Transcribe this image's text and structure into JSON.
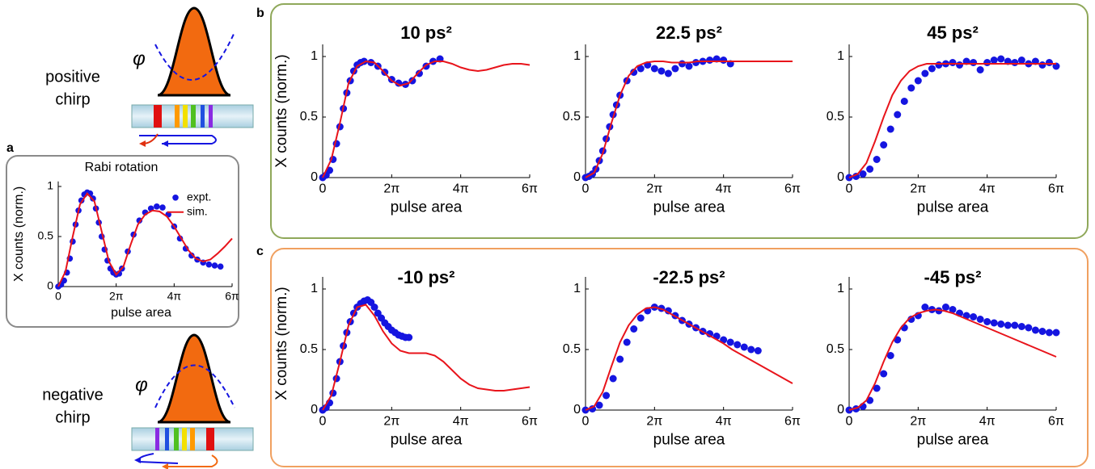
{
  "panel_labels": [
    "a",
    "b",
    "c"
  ],
  "illustrations": [
    {
      "label_lines": [
        "positive",
        "chirp"
      ],
      "phi": "φ"
    },
    {
      "label_lines": [
        "negative",
        "chirp"
      ],
      "phi": "φ"
    }
  ],
  "chart_data": [
    {
      "type": "scatter_line",
      "title": "Rabi rotation",
      "xlabel": "pulse area",
      "ylabel": "X counts (norm.)",
      "xlim": [
        0,
        6
      ],
      "ylim": [
        0,
        1.05
      ],
      "xticks": [
        0,
        {
          "value": 2,
          "label": "2π"
        },
        {
          "value": 4,
          "label": "4π"
        },
        {
          "value": 6,
          "label": "6π"
        }
      ],
      "yticks": [
        0,
        0.5,
        1
      ],
      "legend": "upper right",
      "series": [
        {
          "name": "expt.",
          "type": "scatter",
          "color": "#1515e0",
          "x": [
            0,
            0.1,
            0.2,
            0.3,
            0.4,
            0.5,
            0.6,
            0.7,
            0.8,
            0.9,
            1.0,
            1.1,
            1.2,
            1.3,
            1.4,
            1.5,
            1.6,
            1.7,
            1.8,
            1.9,
            2.0,
            2.1,
            2.2,
            2.4,
            2.6,
            2.8,
            3.0,
            3.2,
            3.4,
            3.6,
            3.8,
            4.0,
            4.2,
            4.4,
            4.6,
            4.8,
            5.0,
            5.2,
            5.4,
            5.6
          ],
          "values": [
            0,
            0.02,
            0.06,
            0.14,
            0.28,
            0.45,
            0.62,
            0.76,
            0.86,
            0.92,
            0.94,
            0.93,
            0.88,
            0.78,
            0.64,
            0.5,
            0.37,
            0.26,
            0.18,
            0.14,
            0.12,
            0.13,
            0.18,
            0.35,
            0.52,
            0.66,
            0.74,
            0.78,
            0.8,
            0.79,
            0.72,
            0.6,
            0.48,
            0.38,
            0.31,
            0.27,
            0.24,
            0.22,
            0.21,
            0.2
          ]
        },
        {
          "name": "sim.",
          "type": "line",
          "color": "#e8141b",
          "x": [
            0,
            0.25,
            0.5,
            0.75,
            1,
            1.25,
            1.5,
            1.75,
            2,
            2.25,
            2.5,
            2.75,
            3,
            3.25,
            3.5,
            3.75,
            4,
            4.25,
            4.5,
            4.75,
            5,
            5.25,
            5.5,
            5.75,
            6
          ],
          "values": [
            0,
            0.15,
            0.5,
            0.82,
            0.93,
            0.85,
            0.55,
            0.25,
            0.12,
            0.2,
            0.42,
            0.62,
            0.72,
            0.76,
            0.75,
            0.7,
            0.6,
            0.48,
            0.36,
            0.28,
            0.25,
            0.27,
            0.33,
            0.4,
            0.48
          ]
        }
      ]
    },
    {
      "type": "scatter_line",
      "title": "10 ps²",
      "xlabel": "pulse area",
      "ylabel": "X counts (norm.)",
      "xlim": [
        0,
        6
      ],
      "ylim": [
        0,
        1.1
      ],
      "xticks": [
        0,
        {
          "value": 2,
          "label": "2π"
        },
        {
          "value": 4,
          "label": "4π"
        },
        {
          "value": 6,
          "label": "6π"
        }
      ],
      "yticks": [
        0,
        0.5,
        1
      ],
      "series": [
        {
          "type": "scatter",
          "color": "#1515e0",
          "x": [
            0,
            0.1,
            0.2,
            0.3,
            0.4,
            0.5,
            0.6,
            0.7,
            0.8,
            0.9,
            1.0,
            1.1,
            1.2,
            1.4,
            1.6,
            1.8,
            2.0,
            2.2,
            2.4,
            2.6,
            2.8,
            3.0,
            3.2,
            3.4
          ],
          "values": [
            0,
            0.02,
            0.06,
            0.15,
            0.28,
            0.42,
            0.57,
            0.7,
            0.8,
            0.88,
            0.93,
            0.95,
            0.96,
            0.95,
            0.92,
            0.87,
            0.81,
            0.78,
            0.77,
            0.8,
            0.86,
            0.92,
            0.96,
            0.98
          ]
        },
        {
          "type": "line",
          "color": "#e8141b",
          "x": [
            0,
            0.25,
            0.5,
            0.75,
            1,
            1.25,
            1.5,
            1.75,
            2,
            2.25,
            2.5,
            2.75,
            3,
            3.25,
            3.5,
            3.75,
            4,
            4.25,
            4.5,
            4.75,
            5,
            5.25,
            5.5,
            5.75,
            6
          ],
          "values": [
            0,
            0.15,
            0.45,
            0.78,
            0.92,
            0.96,
            0.95,
            0.88,
            0.8,
            0.76,
            0.78,
            0.86,
            0.93,
            0.96,
            0.96,
            0.94,
            0.91,
            0.89,
            0.88,
            0.89,
            0.91,
            0.93,
            0.94,
            0.94,
            0.93
          ]
        }
      ]
    },
    {
      "type": "scatter_line",
      "title": "22.5 ps²",
      "xlabel": "pulse area",
      "xlim": [
        0,
        6
      ],
      "ylim": [
        0,
        1.1
      ],
      "xticks": [
        0,
        {
          "value": 2,
          "label": "2π"
        },
        {
          "value": 4,
          "label": "4π"
        },
        {
          "value": 6,
          "label": "6π"
        }
      ],
      "yticks": [
        0,
        0.5,
        1
      ],
      "series": [
        {
          "type": "scatter",
          "color": "#1515e0",
          "x": [
            0,
            0.1,
            0.2,
            0.3,
            0.4,
            0.5,
            0.6,
            0.7,
            0.8,
            0.9,
            1.0,
            1.2,
            1.4,
            1.6,
            1.8,
            2.0,
            2.2,
            2.4,
            2.6,
            2.8,
            3.0,
            3.2,
            3.4,
            3.6,
            3.8,
            4.0,
            4.2
          ],
          "values": [
            0,
            0.01,
            0.03,
            0.07,
            0.14,
            0.22,
            0.32,
            0.42,
            0.52,
            0.6,
            0.68,
            0.8,
            0.87,
            0.9,
            0.93,
            0.9,
            0.88,
            0.86,
            0.9,
            0.94,
            0.92,
            0.95,
            0.96,
            0.97,
            0.98,
            0.97,
            0.94
          ]
        },
        {
          "type": "line",
          "color": "#e8141b",
          "x": [
            0,
            0.25,
            0.5,
            0.75,
            1,
            1.25,
            1.5,
            1.75,
            2,
            2.25,
            2.5,
            2.75,
            3,
            3.25,
            3.5,
            3.75,
            4,
            4.25,
            4.5,
            4.75,
            5,
            5.25,
            5.5,
            5.75,
            6
          ],
          "values": [
            0,
            0.04,
            0.2,
            0.45,
            0.68,
            0.84,
            0.92,
            0.95,
            0.96,
            0.96,
            0.95,
            0.95,
            0.95,
            0.96,
            0.96,
            0.96,
            0.96,
            0.96,
            0.96,
            0.96,
            0.96,
            0.96,
            0.96,
            0.96,
            0.96
          ]
        }
      ]
    },
    {
      "type": "scatter_line",
      "title": "45 ps²",
      "xlabel": "pulse area",
      "xlim": [
        0,
        6
      ],
      "ylim": [
        0,
        1.1
      ],
      "xticks": [
        0,
        {
          "value": 2,
          "label": "2π"
        },
        {
          "value": 4,
          "label": "4π"
        },
        {
          "value": 6,
          "label": "6π"
        }
      ],
      "yticks": [
        0,
        0.5,
        1
      ],
      "series": [
        {
          "type": "scatter",
          "color": "#1515e0",
          "x": [
            0,
            0.2,
            0.4,
            0.6,
            0.8,
            1.0,
            1.2,
            1.4,
            1.6,
            1.8,
            2.0,
            2.2,
            2.4,
            2.6,
            2.8,
            3.0,
            3.2,
            3.4,
            3.6,
            3.8,
            4.0,
            4.2,
            4.4,
            4.6,
            4.8,
            5.0,
            5.2,
            5.4,
            5.6,
            5.8,
            6.0
          ],
          "values": [
            0,
            0.01,
            0.03,
            0.07,
            0.15,
            0.27,
            0.4,
            0.52,
            0.63,
            0.74,
            0.8,
            0.86,
            0.9,
            0.93,
            0.94,
            0.95,
            0.93,
            0.96,
            0.95,
            0.89,
            0.95,
            0.97,
            0.98,
            0.96,
            0.95,
            0.97,
            0.94,
            0.96,
            0.93,
            0.95,
            0.92
          ]
        },
        {
          "type": "line",
          "color": "#e8141b",
          "x": [
            0,
            0.25,
            0.5,
            0.75,
            1,
            1.25,
            1.5,
            1.75,
            2,
            2.25,
            2.5,
            2.75,
            3,
            3.25,
            3.5,
            3.75,
            4,
            4.25,
            4.5,
            4.75,
            5,
            5.25,
            5.5,
            5.75,
            6
          ],
          "values": [
            0,
            0.03,
            0.12,
            0.3,
            0.5,
            0.68,
            0.8,
            0.88,
            0.92,
            0.94,
            0.94,
            0.94,
            0.94,
            0.94,
            0.94,
            0.94,
            0.94,
            0.94,
            0.94,
            0.94,
            0.94,
            0.94,
            0.94,
            0.94,
            0.94
          ]
        }
      ]
    },
    {
      "type": "scatter_line",
      "title": "-10 ps²",
      "xlabel": "pulse area",
      "ylabel": "X counts (norm.)",
      "xlim": [
        0,
        6
      ],
      "ylim": [
        0,
        1.1
      ],
      "xticks": [
        0,
        {
          "value": 2,
          "label": "2π"
        },
        {
          "value": 4,
          "label": "4π"
        },
        {
          "value": 6,
          "label": "6π"
        }
      ],
      "yticks": [
        0,
        0.5,
        1
      ],
      "series": [
        {
          "type": "scatter",
          "color": "#1515e0",
          "x": [
            0,
            0.1,
            0.2,
            0.3,
            0.4,
            0.5,
            0.6,
            0.7,
            0.8,
            0.9,
            1.0,
            1.1,
            1.2,
            1.3,
            1.4,
            1.5,
            1.6,
            1.7,
            1.8,
            1.9,
            2.0,
            2.1,
            2.2,
            2.3,
            2.4,
            2.5
          ],
          "values": [
            0,
            0.02,
            0.06,
            0.14,
            0.26,
            0.4,
            0.53,
            0.64,
            0.73,
            0.8,
            0.85,
            0.88,
            0.9,
            0.91,
            0.89,
            0.85,
            0.8,
            0.76,
            0.72,
            0.69,
            0.66,
            0.64,
            0.62,
            0.61,
            0.6,
            0.6
          ]
        },
        {
          "type": "line",
          "color": "#e8141b",
          "x": [
            0,
            0.25,
            0.5,
            0.75,
            1,
            1.25,
            1.5,
            1.75,
            2,
            2.25,
            2.5,
            2.75,
            3,
            3.25,
            3.5,
            3.75,
            4,
            4.25,
            4.5,
            4.75,
            5,
            5.25,
            5.5,
            5.75,
            6
          ],
          "values": [
            0,
            0.12,
            0.4,
            0.7,
            0.85,
            0.87,
            0.78,
            0.65,
            0.55,
            0.49,
            0.47,
            0.47,
            0.47,
            0.45,
            0.4,
            0.33,
            0.26,
            0.21,
            0.18,
            0.17,
            0.16,
            0.16,
            0.17,
            0.18,
            0.19
          ]
        }
      ]
    },
    {
      "type": "scatter_line",
      "title": "-22.5 ps²",
      "xlabel": "pulse area",
      "xlim": [
        0,
        6
      ],
      "ylim": [
        0,
        1.1
      ],
      "xticks": [
        0,
        {
          "value": 2,
          "label": "2π"
        },
        {
          "value": 4,
          "label": "4π"
        },
        {
          "value": 6,
          "label": "6π"
        }
      ],
      "yticks": [
        0,
        0.5,
        1
      ],
      "series": [
        {
          "type": "scatter",
          "color": "#1515e0",
          "x": [
            0,
            0.2,
            0.4,
            0.6,
            0.8,
            1.0,
            1.2,
            1.4,
            1.6,
            1.8,
            2.0,
            2.2,
            2.4,
            2.6,
            2.8,
            3.0,
            3.2,
            3.4,
            3.6,
            3.8,
            4.0,
            4.2,
            4.4,
            4.6,
            4.8,
            5.0
          ],
          "values": [
            0,
            0.01,
            0.04,
            0.12,
            0.26,
            0.42,
            0.56,
            0.67,
            0.76,
            0.82,
            0.85,
            0.84,
            0.82,
            0.78,
            0.74,
            0.71,
            0.68,
            0.65,
            0.63,
            0.61,
            0.58,
            0.56,
            0.54,
            0.52,
            0.5,
            0.49
          ]
        },
        {
          "type": "line",
          "color": "#e8141b",
          "x": [
            0,
            0.25,
            0.5,
            0.75,
            1,
            1.25,
            1.5,
            1.75,
            2,
            2.25,
            2.5,
            2.75,
            3,
            3.25,
            3.5,
            3.75,
            4,
            4.25,
            4.5,
            4.75,
            5,
            5.25,
            5.5,
            5.75,
            6
          ],
          "values": [
            0,
            0.03,
            0.15,
            0.36,
            0.56,
            0.7,
            0.79,
            0.84,
            0.85,
            0.83,
            0.79,
            0.75,
            0.71,
            0.67,
            0.63,
            0.59,
            0.55,
            0.5,
            0.46,
            0.42,
            0.38,
            0.34,
            0.3,
            0.26,
            0.22
          ]
        }
      ]
    },
    {
      "type": "scatter_line",
      "title": "-45 ps²",
      "xlabel": "pulse area",
      "xlim": [
        0,
        6
      ],
      "ylim": [
        0,
        1.1
      ],
      "xticks": [
        0,
        {
          "value": 2,
          "label": "2π"
        },
        {
          "value": 4,
          "label": "4π"
        },
        {
          "value": 6,
          "label": "6π"
        }
      ],
      "yticks": [
        0,
        0.5,
        1
      ],
      "series": [
        {
          "type": "scatter",
          "color": "#1515e0",
          "x": [
            0,
            0.2,
            0.4,
            0.6,
            0.8,
            1.0,
            1.2,
            1.4,
            1.6,
            1.8,
            2.0,
            2.2,
            2.4,
            2.6,
            2.8,
            3.0,
            3.2,
            3.4,
            3.6,
            3.8,
            4.0,
            4.2,
            4.4,
            4.6,
            4.8,
            5.0,
            5.2,
            5.4,
            5.6,
            5.8,
            6.0
          ],
          "values": [
            0,
            0.01,
            0.03,
            0.08,
            0.18,
            0.3,
            0.45,
            0.58,
            0.68,
            0.75,
            0.78,
            0.85,
            0.83,
            0.82,
            0.85,
            0.83,
            0.8,
            0.78,
            0.77,
            0.75,
            0.73,
            0.72,
            0.71,
            0.7,
            0.7,
            0.69,
            0.68,
            0.66,
            0.65,
            0.64,
            0.64
          ]
        },
        {
          "type": "line",
          "color": "#e8141b",
          "x": [
            0,
            0.25,
            0.5,
            0.75,
            1,
            1.25,
            1.5,
            1.75,
            2,
            2.25,
            2.5,
            2.75,
            3,
            3.25,
            3.5,
            3.75,
            4,
            4.25,
            4.5,
            4.75,
            5,
            5.25,
            5.5,
            5.75,
            6
          ],
          "values": [
            0,
            0.02,
            0.08,
            0.22,
            0.4,
            0.56,
            0.68,
            0.76,
            0.8,
            0.82,
            0.83,
            0.82,
            0.8,
            0.77,
            0.74,
            0.71,
            0.68,
            0.65,
            0.62,
            0.59,
            0.56,
            0.53,
            0.5,
            0.47,
            0.44
          ]
        }
      ]
    }
  ]
}
